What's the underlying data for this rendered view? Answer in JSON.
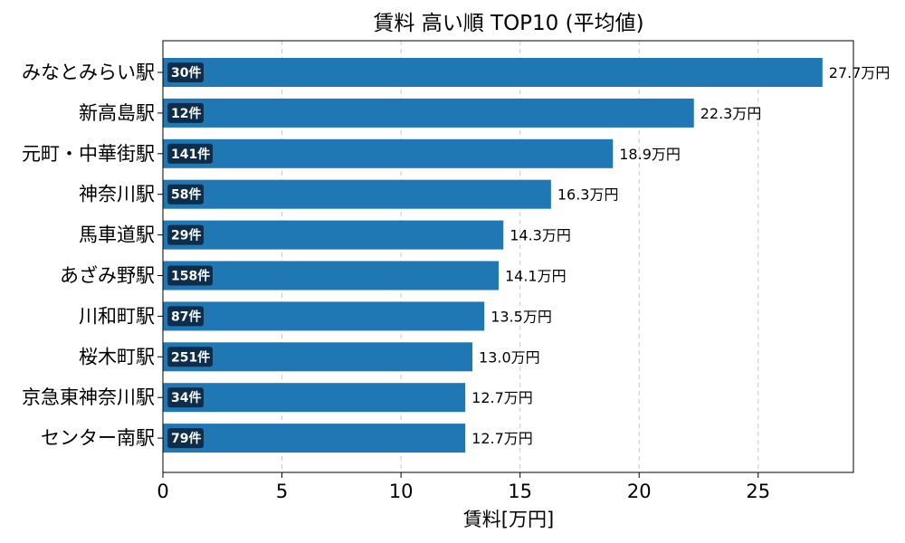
{
  "chart_data": {
    "type": "bar",
    "orientation": "horizontal",
    "title": "賃料 高い順 TOP10 (平均値)",
    "xlabel": "賃料[万円]",
    "ylabel": "",
    "xlim": [
      0,
      29
    ],
    "xticks": [
      "0",
      "5",
      "10",
      "15",
      "20",
      "25"
    ],
    "xtick_values": [
      0,
      5,
      10,
      15,
      20,
      25
    ],
    "grid": "vertical-dashed",
    "bar_color": "#1f77b4",
    "badge_color": "#0d2d4a",
    "categories": [
      "みなとみらい駅",
      "新高島駅",
      "元町・中華街駅",
      "神奈川駅",
      "馬車道駅",
      "あざみ野駅",
      "川和町駅",
      "桜木町駅",
      "京急東神奈川駅",
      "センター南駅"
    ],
    "values": [
      27.7,
      22.3,
      18.9,
      16.3,
      14.3,
      14.1,
      13.5,
      13.0,
      12.7,
      12.7
    ],
    "value_labels": [
      "27.7万円",
      "22.3万円",
      "18.9万円",
      "16.3万円",
      "14.3万円",
      "14.1万円",
      "13.5万円",
      "13.0万円",
      "12.7万円",
      "12.7万円"
    ],
    "counts": [
      "30件",
      "12件",
      "141件",
      "58件",
      "29件",
      "158件",
      "87件",
      "251件",
      "34件",
      "79件"
    ]
  }
}
